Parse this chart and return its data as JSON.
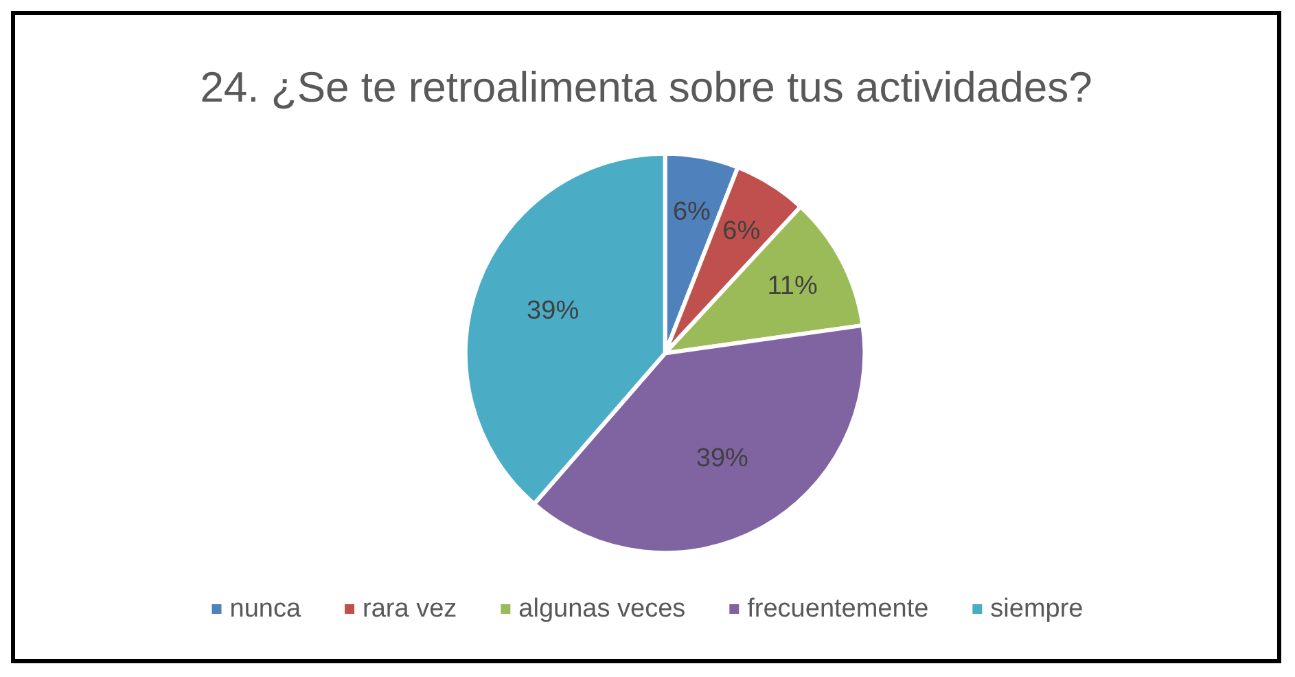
{
  "chart_data": {
    "type": "pie",
    "title": "24. ¿Se te retroalimenta sobre tus actividades?",
    "categories": [
      "nunca",
      "rara vez",
      "algunas veces",
      "frecuentemente",
      "siempre"
    ],
    "values": [
      6,
      6,
      11,
      39,
      39
    ],
    "value_labels": [
      "6%",
      "6%",
      "11%",
      "39%",
      "39%"
    ],
    "colors": [
      "#4f81bd",
      "#c0504d",
      "#9bbb59",
      "#8064a2",
      "#4bacc6"
    ],
    "legend": "bottom"
  }
}
